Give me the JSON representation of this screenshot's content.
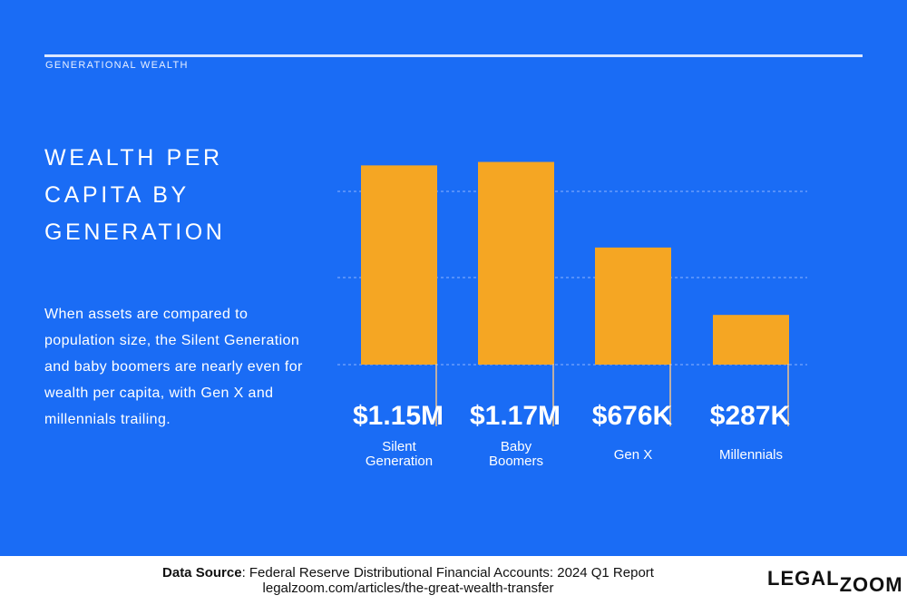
{
  "header": {
    "section_label": "GENERATIONAL WEALTH"
  },
  "title": {
    "line1": "WEALTH PER",
    "line2": "CAPITA BY",
    "line3": "GENERATION"
  },
  "description": "When assets are compared to population size, the Silent Generation and baby boomers are nearly even for wealth per capita, with Gen X and millennials trailing.",
  "chart_data": {
    "type": "bar",
    "title": "WEALTH PER CAPITA BY GENERATION",
    "xlabel": "",
    "ylabel": "",
    "unit": "USD",
    "ylim": [
      0,
      1200000
    ],
    "grid": true,
    "categories": [
      {
        "line1": "Silent",
        "line2": "Generation"
      },
      {
        "line1": "Baby",
        "line2": "Boomers"
      },
      {
        "line1": "Gen X",
        "line2": ""
      },
      {
        "line1": "Millennials",
        "line2": ""
      }
    ],
    "values": [
      1150000,
      1170000,
      676000,
      287000
    ],
    "data_labels": [
      "$1.15M",
      "$1.17M",
      "$676K",
      "$287K"
    ]
  },
  "footer": {
    "source_label": "Data Source",
    "source_text": ": Federal Reserve Distributional Financial Accounts: 2024 Q1 Report",
    "source_url": "legalzoom.com/articles/the-great-wealth-transfer",
    "logo_part1": "LEGAL",
    "logo_part2": "ZOOM"
  },
  "colors": {
    "background": "#1a6cf5",
    "bar": "#f5a623",
    "text": "#ffffff",
    "footer_bg": "#ffffff"
  }
}
